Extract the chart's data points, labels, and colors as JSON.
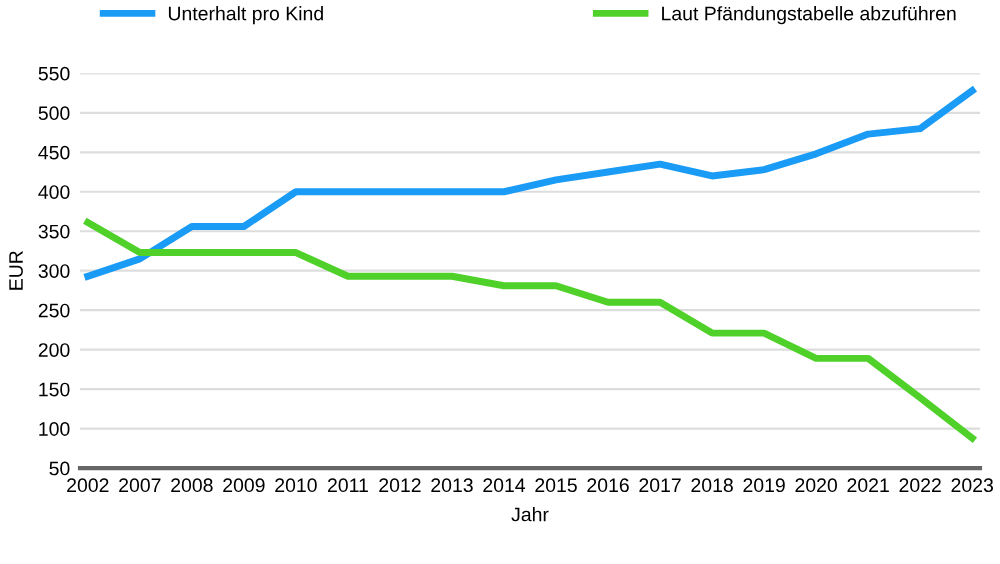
{
  "chart_data": {
    "type": "line",
    "xlabel": "Jahr",
    "ylabel": "EUR",
    "categories": [
      "2002",
      "2007",
      "2008",
      "2009",
      "2010",
      "2011",
      "2012",
      "2013",
      "2014",
      "2015",
      "2016",
      "2017",
      "2018",
      "2019",
      "2020",
      "2021",
      "2022",
      "2023"
    ],
    "series": [
      {
        "name": "Unterhalt pro Kind",
        "color": "#1a9bf5",
        "values": [
          293,
          315,
          356,
          356,
          400,
          400,
          400,
          400,
          400,
          415,
          425,
          435,
          420,
          428,
          448,
          473,
          480,
          528
        ]
      },
      {
        "name": "Laut Pfändungstabelle abzuführen",
        "color": "#4fd12a",
        "values": [
          361,
          323,
          323,
          323,
          323,
          293,
          293,
          293,
          281,
          281,
          260,
          260,
          221,
          221,
          189,
          189,
          139,
          88
        ]
      }
    ],
    "ylim": [
      50,
      550
    ],
    "yticks": [
      50,
      100,
      150,
      200,
      250,
      300,
      350,
      400,
      450,
      500,
      550
    ],
    "grid": "y",
    "legend": "top",
    "marker": "none",
    "line_style": "solid"
  }
}
